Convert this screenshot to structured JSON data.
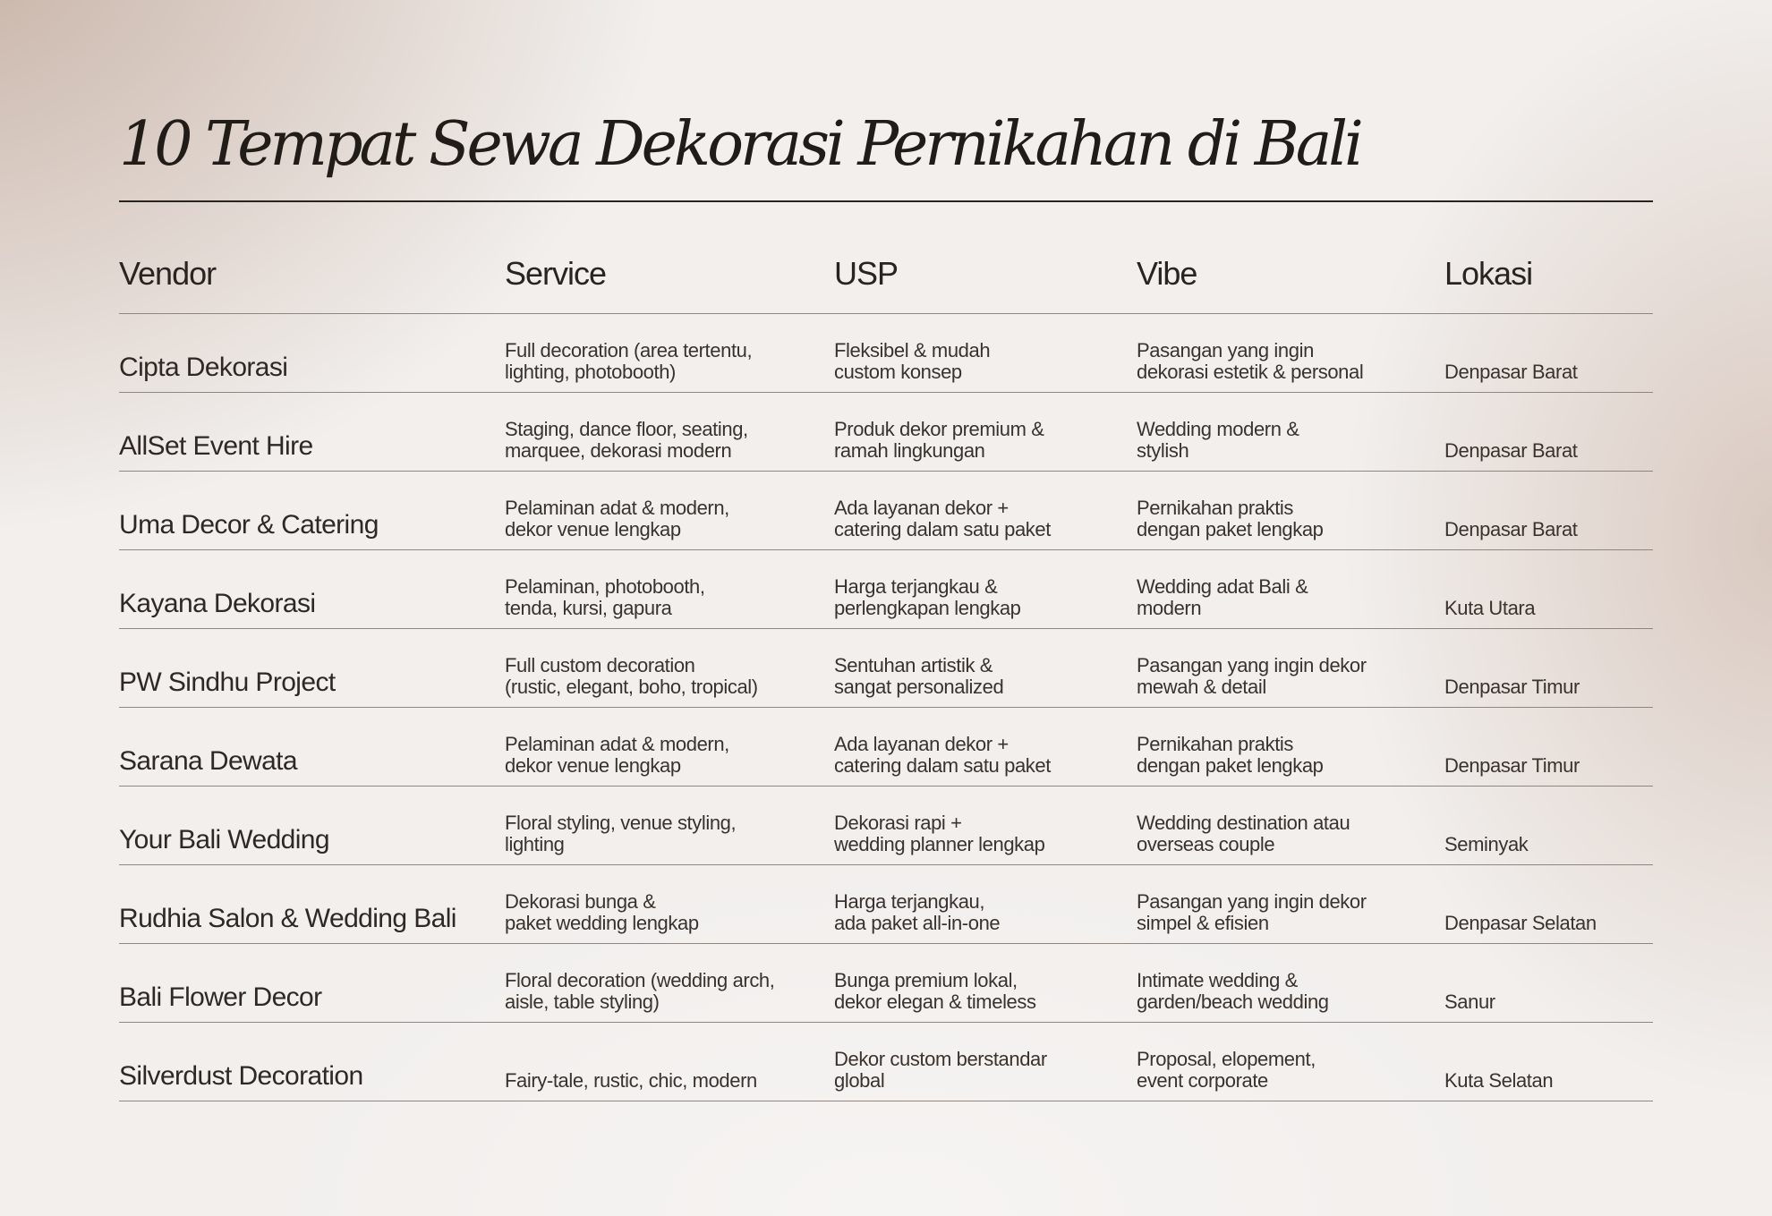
{
  "title": "10 Tempat Sewa Dekorasi Pernikahan di Bali",
  "colors": {
    "text": "#2a2420",
    "rule": "#8f8680",
    "background_accent": "#bea596",
    "background": "#f2efed"
  },
  "table": {
    "headers": {
      "vendor": "Vendor",
      "service": "Service",
      "usp": "USP",
      "vibe": "Vibe",
      "lokasi": "Lokasi"
    },
    "rows": [
      {
        "vendor": "Cipta Dekorasi",
        "service": "Full decoration (area tertentu,\nlighting, photobooth)",
        "usp": "Fleksibel & mudah\ncustom konsep",
        "vibe": "Pasangan yang ingin\ndekorasi estetik & personal",
        "lokasi": "Denpasar Barat"
      },
      {
        "vendor": "AllSet Event Hire",
        "service": "Staging, dance floor, seating,\nmarquee, dekorasi modern",
        "usp": "Produk dekor premium &\nramah lingkungan",
        "vibe": "Wedding modern &\nstylish",
        "lokasi": "Denpasar Barat"
      },
      {
        "vendor": "Uma Decor & Catering",
        "service": "Pelaminan adat & modern,\ndekor venue lengkap",
        "usp": "Ada layanan dekor +\ncatering dalam satu paket",
        "vibe": "Pernikahan praktis\ndengan paket lengkap",
        "lokasi": "Denpasar Barat"
      },
      {
        "vendor": "Kayana Dekorasi",
        "service": "Pelaminan, photobooth,\ntenda, kursi, gapura",
        "usp": "Harga terjangkau &\nperlengkapan lengkap",
        "vibe": "Wedding adat Bali &\nmodern",
        "lokasi": "Kuta Utara"
      },
      {
        "vendor": "PW Sindhu Project",
        "service": "Full custom decoration\n(rustic, elegant, boho, tropical)",
        "usp": "Sentuhan artistik &\nsangat personalized",
        "vibe": "Pasangan yang ingin dekor\nmewah & detail",
        "lokasi": "Denpasar Timur"
      },
      {
        "vendor": "Sarana Dewata",
        "service": "Pelaminan adat & modern,\ndekor venue lengkap",
        "usp": "Ada layanan dekor +\ncatering dalam satu paket",
        "vibe": "Pernikahan praktis\ndengan paket lengkap",
        "lokasi": "Denpasar Timur"
      },
      {
        "vendor": "Your Bali Wedding",
        "service": "Floral styling, venue styling,\nlighting",
        "usp": "Dekorasi rapi +\nwedding planner lengkap",
        "vibe": "Wedding destination atau\noverseas couple",
        "lokasi": "Seminyak"
      },
      {
        "vendor": "Rudhia Salon & Wedding Bali",
        "service": "Dekorasi bunga &\npaket wedding lengkap",
        "usp": "Harga terjangkau,\nada paket all-in-one",
        "vibe": "Pasangan yang ingin dekor\nsimpel & efisien",
        "lokasi": "Denpasar Selatan"
      },
      {
        "vendor": "Bali Flower Decor",
        "service": "Floral decoration (wedding arch,\naisle, table styling)",
        "usp": "Bunga premium lokal,\ndekor elegan & timeless",
        "vibe": "Intimate wedding &\ngarden/beach wedding",
        "lokasi": "Sanur"
      },
      {
        "vendor": "Silverdust Decoration",
        "service": "Fairy-tale, rustic, chic, modern",
        "usp": "Dekor custom berstandar\nglobal",
        "vibe": "Proposal, elopement,\nevent corporate",
        "lokasi": "Kuta Selatan"
      }
    ]
  }
}
